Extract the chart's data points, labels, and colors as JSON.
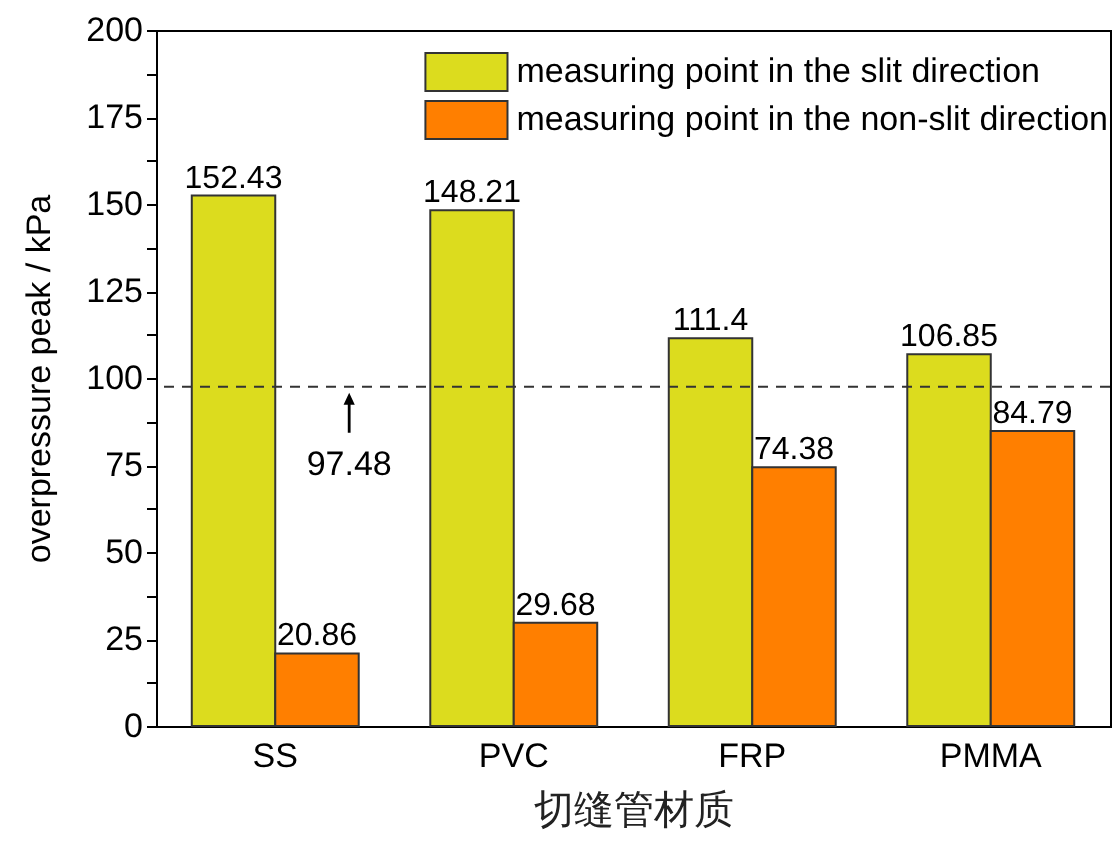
{
  "chart_data": {
    "type": "bar",
    "xlabel": "切缝管材质",
    "ylabel": "overpressure peak / kPa",
    "categories": [
      "SS",
      "PVC",
      "FRP",
      "PMMA"
    ],
    "series": [
      {
        "name": "measuring point in the slit direction",
        "color": "#dcdc1e",
        "values": [
          152.43,
          148.21,
          111.4,
          106.85
        ]
      },
      {
        "name": "measuring point in the non-slit direction",
        "color": "#ff7f00",
        "values": [
          20.86,
          29.68,
          74.38,
          84.79
        ]
      }
    ],
    "ylim": [
      0,
      200
    ],
    "yticks": [
      0,
      {
        "value": 12.5,
        "label": null
      },
      25,
      {
        "value": 37.5,
        "label": null
      },
      50,
      {
        "value": 62.5,
        "label": null
      },
      75,
      {
        "value": 87.5,
        "label": null
      },
      100,
      {
        "value": 112.5,
        "label": null
      },
      125,
      {
        "value": 137.5,
        "label": null
      },
      150,
      {
        "value": 162.5,
        "label": null
      },
      175,
      {
        "value": 187.5,
        "label": null
      },
      200
    ],
    "ref_lines": [
      {
        "axis": "y",
        "value": 97.48,
        "label": "97.48",
        "line_style": "dashed",
        "color": "#333333"
      }
    ],
    "data_labels": true,
    "legend": "top right"
  }
}
